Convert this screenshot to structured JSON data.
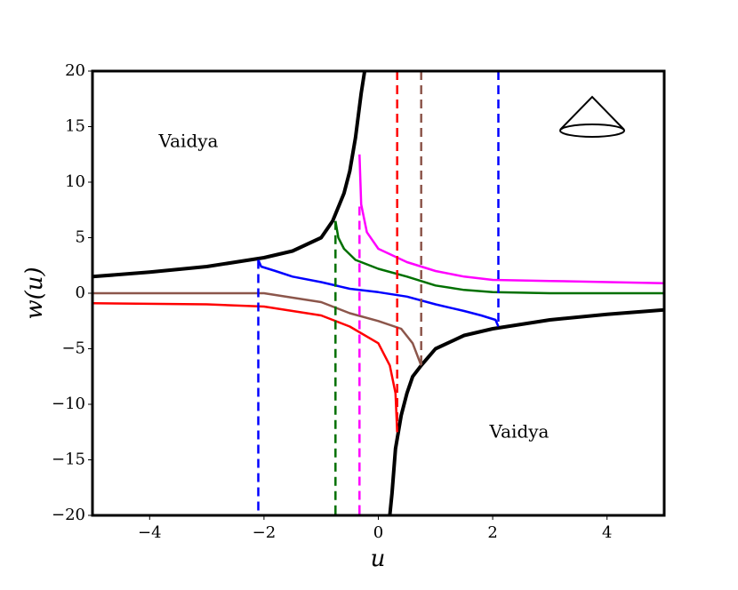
{
  "chart_data": {
    "type": "line",
    "xlabel": "u",
    "ylabel": "w(u)",
    "xlim": [
      -5,
      5
    ],
    "ylim": [
      -20,
      20
    ],
    "xticks": [
      {
        "value": -4,
        "label": "−4"
      },
      {
        "value": -2,
        "label": "−2"
      },
      0,
      2,
      4
    ],
    "yticks": [
      {
        "value": -20,
        "label": "−20"
      },
      {
        "value": -15,
        "label": "−15"
      },
      {
        "value": -10,
        "label": "−10"
      },
      {
        "value": -5,
        "label": "−5"
      },
      0,
      5,
      10,
      15,
      20
    ],
    "grid": false,
    "annotations": [
      "Vaidya",
      "Vaidya"
    ],
    "series": [
      {
        "color": "#000000",
        "width": 4,
        "dashed": false,
        "x": [
          -5,
          -4,
          -3,
          -2,
          -1.5,
          -1,
          -0.8,
          -0.6,
          -0.5,
          -0.4,
          -0.3,
          -0.24
        ],
        "values": [
          1.5,
          1.9,
          2.4,
          3.2,
          3.8,
          5.0,
          6.5,
          9,
          11,
          14,
          18,
          20
        ]
      },
      {
        "color": "#000000",
        "width": 4,
        "dashed": false,
        "x": [
          0.2,
          0.24,
          0.3,
          0.4,
          0.5,
          0.6,
          0.75,
          1,
          1.5,
          2,
          3,
          4,
          5
        ],
        "values": [
          -20,
          -18,
          -14,
          -11,
          -9,
          -7.5,
          -6.5,
          -5.0,
          -3.8,
          -3.2,
          -2.4,
          -1.9,
          -1.5
        ]
      },
      {
        "color": "#0000ff",
        "width": 2.5,
        "dashed": false,
        "x": [
          -2.1,
          -2.05,
          -1.8,
          -1.5,
          -1,
          -0.5,
          0,
          0.5,
          1,
          1.5,
          1.8,
          2.05,
          2.1
        ],
        "values": [
          3.0,
          2.4,
          2.0,
          1.5,
          1.0,
          0.4,
          0.1,
          -0.3,
          -1.0,
          -1.6,
          -2.0,
          -2.4,
          -3.0
        ]
      },
      {
        "color": "#007000",
        "width": 2.5,
        "dashed": false,
        "x": [
          -0.75,
          -0.7,
          -0.6,
          -0.4,
          0,
          0.5,
          1,
          1.5,
          2,
          3,
          5
        ],
        "values": [
          6.5,
          5,
          4,
          3,
          2.2,
          1.5,
          0.7,
          0.3,
          0.1,
          0.0,
          0
        ]
      },
      {
        "color": "#ff00ff",
        "width": 2.5,
        "dashed": false,
        "x": [
          -0.33,
          -0.3,
          -0.2,
          0,
          0.5,
          1,
          1.5,
          2,
          3,
          5
        ],
        "values": [
          12.5,
          8,
          5.5,
          4,
          2.8,
          2,
          1.5,
          1.2,
          1.1,
          0.9
        ]
      },
      {
        "color": "#ff0000",
        "width": 2.5,
        "dashed": false,
        "x": [
          -5,
          -3,
          -2,
          -1,
          -0.5,
          0,
          0.2,
          0.3,
          0.33
        ],
        "values": [
          -0.9,
          -1.0,
          -1.2,
          -2,
          -3,
          -4.5,
          -6.5,
          -9,
          -12.5
        ]
      },
      {
        "color": "#8c564b",
        "width": 2.5,
        "dashed": false,
        "x": [
          -5,
          -2,
          -1,
          -0.5,
          0,
          0.4,
          0.6,
          0.75
        ],
        "values": [
          0,
          0,
          -0.8,
          -1.8,
          -2.5,
          -3.2,
          -4.5,
          -6.5
        ]
      },
      {
        "color": "#0000ff",
        "width": 2.5,
        "dashed": true,
        "x": [
          -2.1,
          -2.1
        ],
        "values": [
          3,
          -20
        ]
      },
      {
        "color": "#0000ff",
        "width": 2.5,
        "dashed": true,
        "x": [
          2.1,
          2.1
        ],
        "values": [
          20,
          -3
        ]
      },
      {
        "color": "#007000",
        "width": 2.5,
        "dashed": true,
        "x": [
          -0.75,
          -0.75
        ],
        "values": [
          6.5,
          -20
        ]
      },
      {
        "color": "#ff00ff",
        "width": 2.5,
        "dashed": true,
        "x": [
          -0.33,
          -0.33
        ],
        "values": [
          7.8,
          -20
        ]
      },
      {
        "color": "#ff0000",
        "width": 2.5,
        "dashed": true,
        "x": [
          0.33,
          0.33
        ],
        "values": [
          20,
          -12.5
        ]
      },
      {
        "color": "#8c564b",
        "width": 2.5,
        "dashed": true,
        "x": [
          0.75,
          0.75
        ],
        "values": [
          20,
          -6.5
        ]
      }
    ]
  }
}
